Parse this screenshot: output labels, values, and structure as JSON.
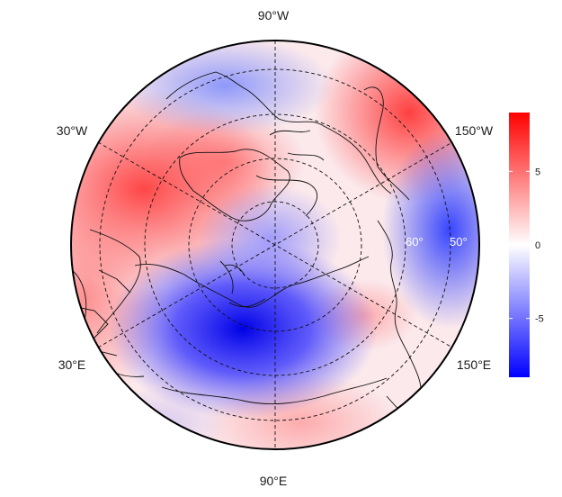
{
  "map": {
    "projection": "north-polar-stereographic",
    "color_scale": {
      "min": -9,
      "max": 9,
      "ticks": [
        {
          "value": 5,
          "label": "5"
        },
        {
          "value": 0,
          "label": "0"
        },
        {
          "value": -5,
          "label": "-5"
        }
      ],
      "low_color": "#0000ff",
      "mid_color": "#ffffff",
      "high_color": "#ff0000"
    },
    "longitude_labels": [
      {
        "text": "90°W",
        "lon": -90
      },
      {
        "text": "30°W",
        "lon": -30
      },
      {
        "text": "150°W",
        "lon": -150
      },
      {
        "text": "30°E",
        "lon": 30
      },
      {
        "text": "150°E",
        "lon": 150
      },
      {
        "text": "90°E",
        "lon": 90
      }
    ],
    "latitude_labels": [
      {
        "text": "60°",
        "lat": 60
      },
      {
        "text": "50°",
        "lat": 50
      }
    ],
    "graticule_latitudes": [
      80,
      70,
      60,
      50
    ],
    "anomaly_centers": [
      {
        "region": "north-atlantic",
        "value": 6
      },
      {
        "region": "siberia",
        "value": -8
      },
      {
        "region": "alaska",
        "value": 5
      },
      {
        "region": "north-pacific",
        "value": -6
      },
      {
        "region": "canada",
        "value": -3
      },
      {
        "region": "europe",
        "value": 3
      }
    ]
  }
}
